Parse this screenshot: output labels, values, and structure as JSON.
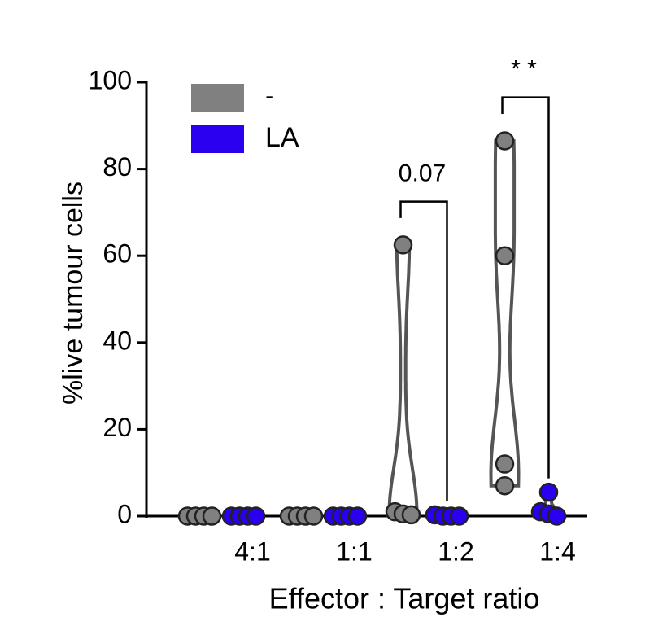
{
  "chart_data": {
    "type": "violin",
    "y_label": "%live tumour cells",
    "x_label": "Effector : Target ratio",
    "categories": [
      "4:1",
      "1:1",
      "1:2",
      "1:4"
    ],
    "series": [
      {
        "name": "-",
        "color": "#808080",
        "values": [
          [
            0,
            0,
            0,
            0
          ],
          [
            0,
            0,
            0,
            0
          ],
          [
            62.5,
            1,
            0.5,
            0.3
          ],
          [
            86.5,
            60,
            12,
            7
          ]
        ]
      },
      {
        "name": "LA",
        "color": "#2a00ee",
        "values": [
          [
            0,
            0,
            0,
            0
          ],
          [
            0,
            0,
            0,
            0
          ],
          [
            0.3,
            0,
            0,
            0
          ],
          [
            5.5,
            1,
            0.5,
            0
          ]
        ]
      }
    ],
    "annotations": [
      {
        "text": "0.07",
        "category": 2
      },
      {
        "text": "* *",
        "category": 3
      }
    ],
    "ylim": [
      0,
      100
    ],
    "yticks": [
      0,
      20,
      40,
      60,
      80,
      100
    ],
    "legend": "top-left"
  }
}
